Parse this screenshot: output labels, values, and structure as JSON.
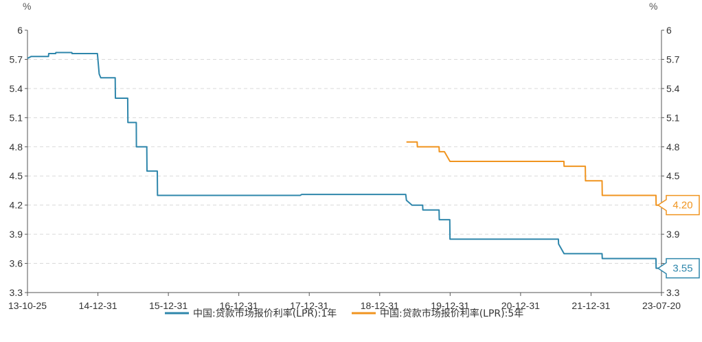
{
  "chart_data": {
    "type": "line",
    "unit_left": "%",
    "unit_right": "%",
    "ylim": [
      3.3,
      6.0
    ],
    "y_ticks": [
      "6",
      "5.7",
      "5.4",
      "5.1",
      "4.8",
      "4.5",
      "4.2",
      "3.9",
      "3.6",
      "3.3"
    ],
    "x_tick_labels": [
      "13-10-25",
      "14-12-31",
      "15-12-31",
      "16-12-31",
      "17-12-31",
      "18-12-31",
      "19-12-31",
      "20-12-31",
      "21-12-31",
      "23-07-20"
    ],
    "grid": true,
    "legend_position": "bottom",
    "series": [
      {
        "name": "中国:贷款市场报价利率(LPR):1年",
        "color": "#2E86AB",
        "last_label": "3.55",
        "points": [
          [
            "2013-10-25",
            5.71
          ],
          [
            "2013-11-15",
            5.73
          ],
          [
            "2014-02-20",
            5.73
          ],
          [
            "2014-02-21",
            5.76
          ],
          [
            "2014-04-01",
            5.76
          ],
          [
            "2014-04-02",
            5.77
          ],
          [
            "2014-07-01",
            5.77
          ],
          [
            "2014-07-02",
            5.76
          ],
          [
            "2014-11-21",
            5.76
          ],
          [
            "2014-12-01",
            5.55
          ],
          [
            "2014-12-10",
            5.51
          ],
          [
            "2015-03-01",
            5.51
          ],
          [
            "2015-03-02",
            5.3
          ],
          [
            "2015-05-10",
            5.3
          ],
          [
            "2015-05-11",
            5.05
          ],
          [
            "2015-06-27",
            5.05
          ],
          [
            "2015-06-28",
            4.8
          ],
          [
            "2015-08-25",
            4.8
          ],
          [
            "2015-08-26",
            4.55
          ],
          [
            "2015-10-23",
            4.55
          ],
          [
            "2015-10-24",
            4.3
          ],
          [
            "2018-01-01",
            4.3
          ],
          [
            "2018-01-10",
            4.31
          ],
          [
            "2019-08-16",
            4.31
          ],
          [
            "2019-08-20",
            4.25
          ],
          [
            "2019-09-20",
            4.2
          ],
          [
            "2019-11-19",
            4.2
          ],
          [
            "2019-11-20",
            4.15
          ],
          [
            "2020-02-19",
            4.15
          ],
          [
            "2020-02-20",
            4.05
          ],
          [
            "2020-04-19",
            4.05
          ],
          [
            "2020-04-20",
            3.85
          ],
          [
            "2021-12-19",
            3.85
          ],
          [
            "2021-12-20",
            3.8
          ],
          [
            "2022-01-20",
            3.7
          ],
          [
            "2022-08-21",
            3.7
          ],
          [
            "2022-08-22",
            3.65
          ],
          [
            "2023-06-19",
            3.65
          ],
          [
            "2023-06-20",
            3.55
          ],
          [
            "2023-07-20",
            3.55
          ]
        ]
      },
      {
        "name": "中国:贷款市场报价利率(LPR):5年",
        "color": "#F0941F",
        "last_label": "4.20",
        "points": [
          [
            "2019-08-20",
            4.85
          ],
          [
            "2019-10-19",
            4.85
          ],
          [
            "2019-10-20",
            4.8
          ],
          [
            "2020-02-19",
            4.8
          ],
          [
            "2020-02-20",
            4.75
          ],
          [
            "2020-03-20",
            4.75
          ],
          [
            "2020-04-20",
            4.65
          ],
          [
            "2022-01-19",
            4.65
          ],
          [
            "2022-01-20",
            4.6
          ],
          [
            "2022-05-19",
            4.6
          ],
          [
            "2022-05-20",
            4.45
          ],
          [
            "2022-08-21",
            4.45
          ],
          [
            "2022-08-22",
            4.3
          ],
          [
            "2023-06-19",
            4.3
          ],
          [
            "2023-06-20",
            4.2
          ],
          [
            "2023-07-20",
            4.2
          ]
        ]
      }
    ]
  }
}
